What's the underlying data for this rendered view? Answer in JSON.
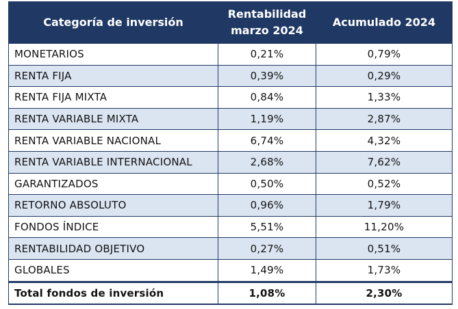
{
  "table": {
    "header": [
      "Categoría de inversión",
      "Rentabilidad marzo 2024",
      "Acumulado 2024"
    ],
    "rows": [
      [
        "MONETARIOS",
        "0,21%",
        "0,79%"
      ],
      [
        "RENTA FIJA",
        "0,39%",
        "0,29%"
      ],
      [
        "RENTA FIJA MIXTA",
        "0,84%",
        "1,33%"
      ],
      [
        "RENTA VARIABLE MIXTA",
        "1,19%",
        "2,87%"
      ],
      [
        "RENTA VARIABLE NACIONAL",
        "6,74%",
        "4,32%"
      ],
      [
        "RENTA VARIABLE INTERNACIONAL",
        "2,68%",
        "7,62%"
      ],
      [
        "GARANTIZADOS",
        "0,50%",
        "0,52%"
      ],
      [
        "RETORNO ABSOLUTO",
        "0,96%",
        "1,79%"
      ],
      [
        "FONDOS ÍNDICE",
        "5,51%",
        "11,20%"
      ],
      [
        "RENTABILIDAD OBJETIVO",
        "0,27%",
        "0,51%"
      ],
      [
        "GLOBALES",
        "1,49%",
        "1,73%"
      ]
    ],
    "total": [
      "Total fondos de inversión",
      "1,08%",
      "2,30%"
    ]
  }
}
